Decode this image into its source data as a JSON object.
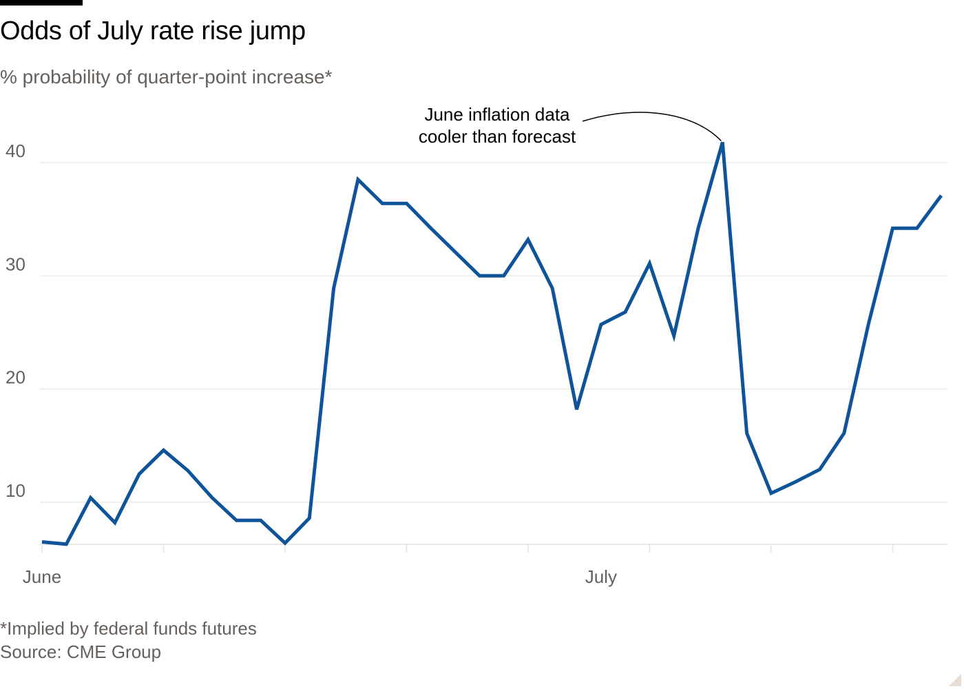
{
  "title": "Odds of July rate rise jump",
  "subtitle": "% probability of quarter-point increase*",
  "footnote": "*Implied by federal funds futures",
  "source": "Source: CME Group",
  "colors": {
    "line": "#0f5499",
    "grid": "#e6e2dc",
    "axis": "#e6e2dc",
    "text_muted": "#66605c"
  },
  "chart_data": {
    "type": "line",
    "title": "Odds of July rate rise jump",
    "ylabel": "% probability of quarter-point increase*",
    "ylim": [
      6,
      42
    ],
    "yticks": [
      10,
      20,
      30,
      40
    ],
    "x_tick_labels": [
      {
        "label": "June",
        "index": 0
      },
      {
        "label": "July",
        "index": 23
      }
    ],
    "grid": "horizontal",
    "series": [
      {
        "values": [
          6.5,
          6.3,
          10.4,
          8.2,
          12.5,
          14.6,
          12.8,
          10.4,
          8.4,
          8.4,
          6.4,
          8.6,
          28.9,
          38.5,
          36.4,
          36.4,
          34.2,
          32.1,
          30.0,
          30.0,
          33.2,
          28.9,
          18.2,
          25.7,
          26.8,
          31.1,
          24.7,
          34.2,
          41.8,
          16.1,
          10.8,
          11.8,
          12.9,
          16.1,
          25.7,
          34.2,
          34.2,
          37.1
        ]
      }
    ],
    "annotations": [
      {
        "lines": [
          "June inflation data",
          "cooler than forecast"
        ],
        "index": 28,
        "value": 41.8
      }
    ]
  }
}
